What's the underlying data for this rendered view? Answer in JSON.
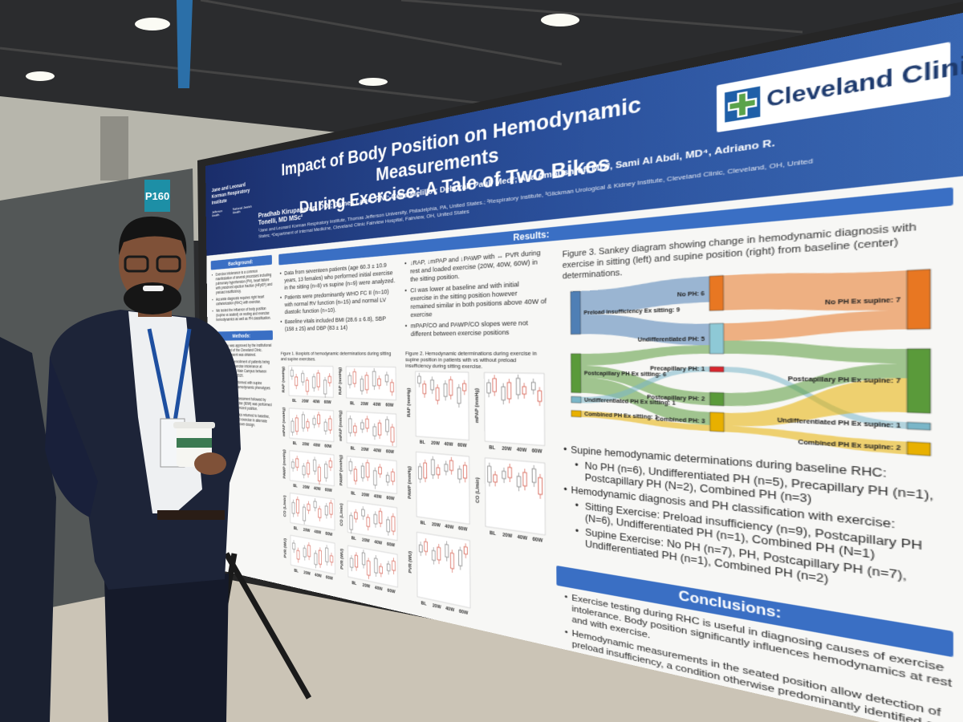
{
  "booth_sign": "P160",
  "institute_logo": {
    "name": "Jane and Leonard Korman Respiratory Institute",
    "partners": [
      "Jefferson Health.",
      "National Jewish Health"
    ]
  },
  "logo": {
    "text": "Cleveland Clinic"
  },
  "header": {
    "title_lines": [
      "Impact of Body Position on Hemodynamic Measurements",
      "During Exercise: A Tale of Two Bikes"
    ],
    "authors": "Pradhab Kirupaharan, DO¹; James Lane, RN²; Celia Melillo²; Deborah Paul, Med²; Alla Amoushref, MD³, Sami Al Abdi, MD⁴, Adriano R. Tonelli, MD MSc²",
    "affiliations": "¹Jane and Leonard Korman Respiratory Institute, Thomas Jefferson University, Philadelphia, PA, United States.; ²Respiratory Institute, ³Glickman Urological & Kidney Institute, Cleveland Clinic, Cleveland, OH, United States; ⁴Department of Internal Medicine, Cleveland Clinic Fairview Hospital, Fairview, OH, United States"
  },
  "background": {
    "heading": "Background:",
    "bullets": [
      "Exercise intolerance is a common manifestation of several processes including pulmonary hypertension (PH), heart failure with preserved ejection fraction (HFpEF) and preload insufficiency.",
      "Accurate diagnosis requires right heart catheterization (RHC) with exercise.",
      "We tested the influence of body position (supine vs seated) on resting and exercise hemodynamics as well as PH classification."
    ]
  },
  "methods": {
    "heading": "Methods:",
    "bullets": [
      "This study was approved by the institutional review board of the Cleveland Clinic. Informed consent was obtained.",
      "Retrospective enrollment of patients being evaluated for exercise intolerance at Cleveland Clinic Main Campus between 12/2018 and 09/2020.",
      "Exercise was performed with supine determinations; hemodynamic phenotypes were defined as:",
      "Hemodynamic assessment followed by submaximal exercise (60W) was performed in the initial randomized position.",
      "After hemodynamics returned to baseline, patients completed exercise in alternate position per cross over design."
    ]
  },
  "results": {
    "heading": "Results:",
    "column_a": [
      "Data from seventeen patients (age 60.3 ± 10.9 years, 13 females) who performed initial exercise in the sitting (n=8) vs supine (n=9) were analyzed.",
      "Patients were predominantly WHO FC II (n=10) with normal RV function (n=15) and normal LV diastolic function (n=10).",
      "Baseline vitals included BMI (28.6 ± 6.8), SBP (158 ± 25) and DBP (83 ± 14)"
    ],
    "column_b": [
      "↓RAP, ↓mPAP and ↓PAWP with ↔ PVR during rest and loaded exercise (20W, 40W, 60W) in the sitting position.",
      "CI was lower at baseline and with initial exercise in the sitting position however remained similar in both positions above 40W of exercise",
      "mPAP/CO and PAWP/CO slopes were not different between exercise positions"
    ],
    "right_bullets": [
      {
        "text": "Supine hemodynamic determinations during baseline RHC:",
        "sub": [
          "No PH (n=6), Undifferentiated PH (n=5), Precapillary PH (n=1), Postcapillary PH (N=2), Combined PH (n=3)"
        ]
      },
      {
        "text": "Hemodynamic diagnosis and PH classification with exercise:",
        "sub": [
          "Sitting Exercise: Preload insufficiency (n=9), Postcapillary PH (N=6), Undifferentiated PH (n=1), Combined PH (N=1)",
          "Supine Exercise: No PH (n=7), PH, Postcapillary PH (n=7), Undifferentiated PH (n=1), Combined PH (n=2)"
        ]
      }
    ]
  },
  "fig1": {
    "caption": "Figure 1. Boxplots of hemodynamic determinations during sitting and supine exercises.",
    "panel_labels": [
      "RAP (mmHg)",
      "RAP (mmHg)",
      "mPAP (mmHg)",
      "mPAP (mmHg)",
      "PAWP (mmHg)",
      "PAWP (mmHg)",
      "CO (L/min)",
      "CO (L/min)",
      "PVR (WU)",
      "PVR (WU)"
    ],
    "x_labels": [
      "BL",
      "20W",
      "40W",
      "60W"
    ]
  },
  "fig2": {
    "caption": "Figure 2. Hemodynamic determinations during exercise in supine position in patients with vs without preload insufficiency during sitting exercise.",
    "panel_labels": [
      "RAP (mmHg)",
      "mPAP (mmHg)",
      "PAWP (mmHg)",
      "CO (L/min)",
      "PVR (WU)"
    ],
    "x_labels": [
      "BL",
      "20W",
      "40W",
      "60W"
    ]
  },
  "fig3": {
    "caption": "Figure 3. Sankey diagram showing change in hemodynamic diagnosis with exercise in sitting (left) and supine position (right) from baseline (center) determinations.",
    "sitting_nodes": [
      "Preload insufficiency Ex sitting: 9",
      "Postcapillary PH Ex sitting: 6",
      "Undifferentiated PH Ex sitting: 1",
      "Combined PH Ex sitting: 1"
    ],
    "baseline_nodes": [
      "No PH: 6",
      "Undifferentiated PH: 5",
      "Precapillary PH: 1",
      "Postcapillary PH: 2",
      "Combined PH: 3"
    ],
    "supine_nodes": [
      "No PH Ex supine: 7",
      "Postcapillary PH Ex supine: 7",
      "Undifferentiated PH Ex supine: 1",
      "Combined PH Ex supine: 2"
    ]
  },
  "conclusions": {
    "heading": "Conclusions:",
    "bullets": [
      "Exercise testing during RHC is useful in diagnosing causes of exercise intolerance. Body position significantly influences hemodynamics at rest and with exercise.",
      "Hemodynamic measurements in the seated position allow detection of preload insufficiency, a condition otherwise predominantly identified as “no PH” in the supine position."
    ]
  }
}
